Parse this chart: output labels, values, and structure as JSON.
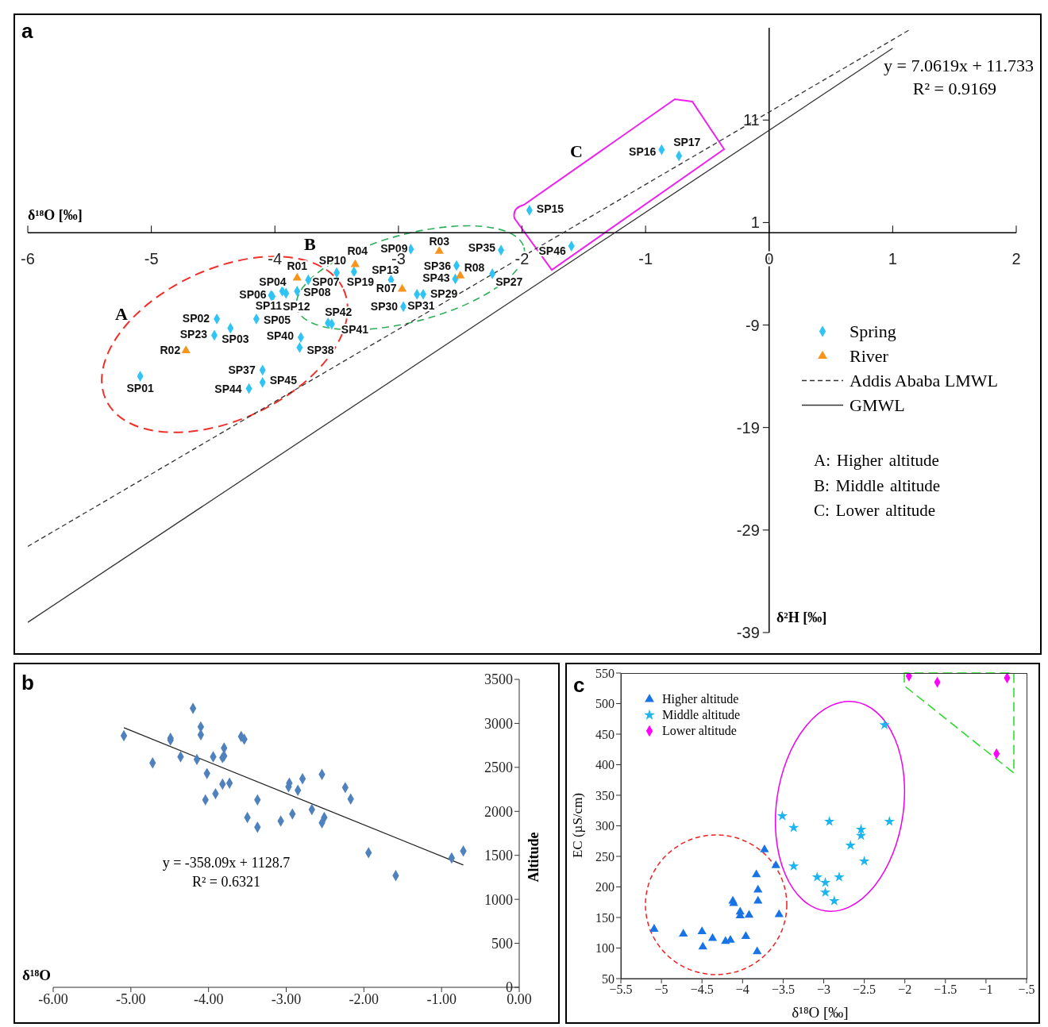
{
  "chart_data": [
    {
      "type": "scatter",
      "xlabel": "δ¹⁸O [‰]",
      "ylabel": "δ²H [‰]",
      "xlim": [
        -6,
        2
      ],
      "ylim": [
        -39,
        20
      ],
      "xticks": [
        -6,
        -5,
        -4,
        -3,
        -2,
        -1,
        0,
        1,
        2
      ],
      "yticks": [
        -39,
        -29,
        -19,
        -9,
        1,
        11
      ],
      "legend": "right",
      "annotations": [
        "a",
        "y = 7.0619x + 11.733",
        "R² = 0.9169",
        "A",
        "B",
        "C",
        "A: Higher altitude",
        "B: Middle altitude",
        "C: Lower altitude"
      ],
      "series": [
        {
          "name": "Spring",
          "type": "scatter",
          "color": "#2fc4f4",
          "marker": "diamond",
          "x": [
            -5.09,
            -4.47,
            -4.49,
            -4.36,
            -4.1,
            -4.1,
            -4.21,
            -4.15,
            -3.79,
            -3.8,
            -4.03,
            -3.94,
            -4.02,
            -3.91,
            -3.82,
            -3.73,
            -3.57,
            -3.54,
            -3.5,
            -3.36,
            -2.9,
            -3.06,
            -2.96,
            -2.85,
            -2.8,
            -2.53,
            -2.54,
            -2.17,
            -2.24,
            -1.6,
            -1.94,
            -0.87,
            -0.73
          ],
          "values": [
            -14.0,
            -8.4,
            -10.0,
            -9.3,
            -13.4,
            -14.6,
            -15.2,
            -8.4,
            -10.2,
            -11.2,
            -6.1,
            -5.7,
            -6.2,
            -5.9,
            -5.7,
            -4.6,
            -8.8,
            -8.9,
            -3.9,
            -3.8,
            -1.6,
            -4.6,
            -7.2,
            -6.0,
            -6.0,
            -3.2,
            -4.5,
            -1.7,
            -4.0,
            -1.3,
            2.2,
            8.1,
            7.5
          ],
          "value_labels": [
            "SP01",
            "SP02",
            "SP23",
            "SP03",
            "SP37",
            "SP45",
            "SP44",
            "SP05",
            "SP40",
            "SP38",
            "SP06",
            "SP04",
            "SP11",
            "SP12",
            "SP08",
            "SP07",
            "SP42",
            "SP41",
            "SP10",
            "SP19",
            "SP09",
            "SP13",
            "SP30",
            "SP31",
            "SP29",
            "SP36",
            "SP43",
            "SP35",
            "SP27",
            "SP46",
            "SP15",
            "SP16",
            "SP17"
          ]
        },
        {
          "name": "River",
          "type": "scatter",
          "color": "#f7941d",
          "marker": "triangle",
          "x": [
            -4.72,
            -3.82,
            -3.35,
            -2.97,
            -2.67,
            -2.5
          ],
          "values": [
            -11.5,
            -4.4,
            -3.1,
            -5.5,
            -1.8,
            -4.2
          ],
          "value_labels": [
            "R02",
            "R01",
            "R04",
            "R07",
            "R03",
            "R08"
          ]
        },
        {
          "name": "Addis Ababa LMWL",
          "type": "line",
          "color": "#333333",
          "line_style": "dashed",
          "x": [
            -6,
            1.15
          ],
          "values": [
            -30.6,
            19.9
          ]
        },
        {
          "name": "GMWL",
          "type": "line",
          "color": "#333333",
          "line_style": "solid",
          "x": [
            -6,
            1
          ],
          "values": [
            -38,
            18
          ]
        }
      ]
    },
    {
      "type": "scatter",
      "xlabel": "δ¹⁸O",
      "ylabel": "Altitude",
      "xlim": [
        -6,
        0
      ],
      "ylim": [
        0,
        3500
      ],
      "xticks": [
        {
          "value": -6,
          "label": "-6.00"
        },
        {
          "value": -5,
          "label": "-5.00"
        },
        {
          "value": -4,
          "label": "-4.00"
        },
        {
          "value": -3,
          "label": "-3.00"
        },
        {
          "value": -2,
          "label": "-2.00"
        },
        {
          "value": -1,
          "label": "-1.00"
        },
        {
          "value": 0,
          "label": "0.00"
        }
      ],
      "yticks": [
        0,
        500,
        1000,
        1500,
        2000,
        2500,
        3000,
        3500
      ],
      "annotations": [
        "b",
        "y = -358.09x + 1128.7",
        "R² = 0.6321"
      ],
      "series": [
        {
          "type": "scatter",
          "color": "#4f81bd",
          "marker": "diamond",
          "x": [
            -5.09,
            -4.72,
            -4.49,
            -4.49,
            -4.36,
            -4.2,
            -4.1,
            -4.1,
            -4.15,
            -3.94,
            -4.02,
            -4.04,
            -3.91,
            -3.8,
            -3.82,
            -3.8,
            -3.82,
            -3.73,
            -3.58,
            -3.54,
            -3.5,
            -3.37,
            -3.37,
            -3.07,
            -2.97,
            -2.96,
            -2.92,
            -2.85,
            -2.79,
            -2.67,
            -2.54,
            -2.54,
            -2.51,
            -2.24,
            -2.17,
            -1.94,
            -1.59,
            -0.87,
            -0.72
          ],
          "values": [
            2860,
            2550,
            2830,
            2810,
            2620,
            3170,
            2960,
            2870,
            2590,
            2620,
            2430,
            2130,
            2200,
            2720,
            2610,
            2630,
            2310,
            2320,
            2850,
            2820,
            1930,
            2130,
            1820,
            1890,
            2280,
            2320,
            1970,
            2240,
            2370,
            2020,
            2420,
            1870,
            1930,
            2270,
            2140,
            1530,
            1270,
            1470,
            1550
          ]
        },
        {
          "type": "line",
          "color": "#222222",
          "line_style": "solid",
          "x": [
            -5.09,
            -0.72
          ],
          "values": [
            2950,
            1390
          ]
        }
      ]
    },
    {
      "type": "scatter",
      "xlabel": "δ¹⁸O [‰]",
      "ylabel": "EC (µS/cm)",
      "xlim": [
        -5.5,
        -0.5
      ],
      "ylim": [
        50,
        550
      ],
      "xticks": [
        {
          "value": -5.5,
          "label": "−5.5"
        },
        {
          "value": -5,
          "label": "−5"
        },
        {
          "value": -4.5,
          "label": "−4.5"
        },
        {
          "value": -4,
          "label": "−4"
        },
        {
          "value": -3.5,
          "label": "−3.5"
        },
        {
          "value": -3,
          "label": "−3"
        },
        {
          "value": -2.5,
          "label": "−2.5"
        },
        {
          "value": -2,
          "label": "−2"
        },
        {
          "value": -1.5,
          "label": "−1.5"
        },
        {
          "value": -1,
          "label": "−1"
        },
        {
          "value": -0.5,
          "label": "−.5"
        }
      ],
      "yticks": [
        50,
        100,
        150,
        200,
        250,
        300,
        350,
        400,
        450,
        500,
        550
      ],
      "legend": "top left",
      "annotations": [
        "c"
      ],
      "series": [
        {
          "name": "Higher altitude",
          "type": "scatter",
          "color": "#1874e6",
          "marker": "triangle",
          "x": [
            -5.09,
            -4.73,
            -4.5,
            -4.49,
            -4.37,
            -4.21,
            -4.15,
            -4.12,
            -4.11,
            -4.03,
            -4.03,
            -3.92,
            -3.96,
            -3.83,
            -3.81,
            -3.81,
            -3.82,
            -3.73,
            -3.59,
            -3.55
          ],
          "values": [
            131,
            123,
            127,
            102,
            116,
            111,
            113,
            177,
            173,
            159,
            153,
            154,
            119,
            220,
            195,
            177,
            94,
            261,
            235,
            155
          ]
        },
        {
          "name": "Middle altitude",
          "type": "scatter",
          "color": "#1cb5f0",
          "marker": "star",
          "x": [
            -3.51,
            -3.37,
            -3.37,
            -3.08,
            -2.98,
            -2.98,
            -2.93,
            -2.87,
            -2.81,
            -2.67,
            -2.54,
            -2.54,
            -2.5,
            -2.25,
            -2.19
          ],
          "values": [
            316,
            297,
            234,
            216,
            207,
            191,
            307,
            177,
            216,
            268,
            294,
            284,
            242,
            465,
            307
          ]
        },
        {
          "name": "Lower altitude",
          "type": "scatter",
          "color": "#ff00ff",
          "marker": "diamond",
          "x": [
            -1.95,
            -1.6,
            -0.87,
            -0.74
          ],
          "values": [
            545,
            535,
            418,
            542
          ]
        }
      ]
    }
  ]
}
